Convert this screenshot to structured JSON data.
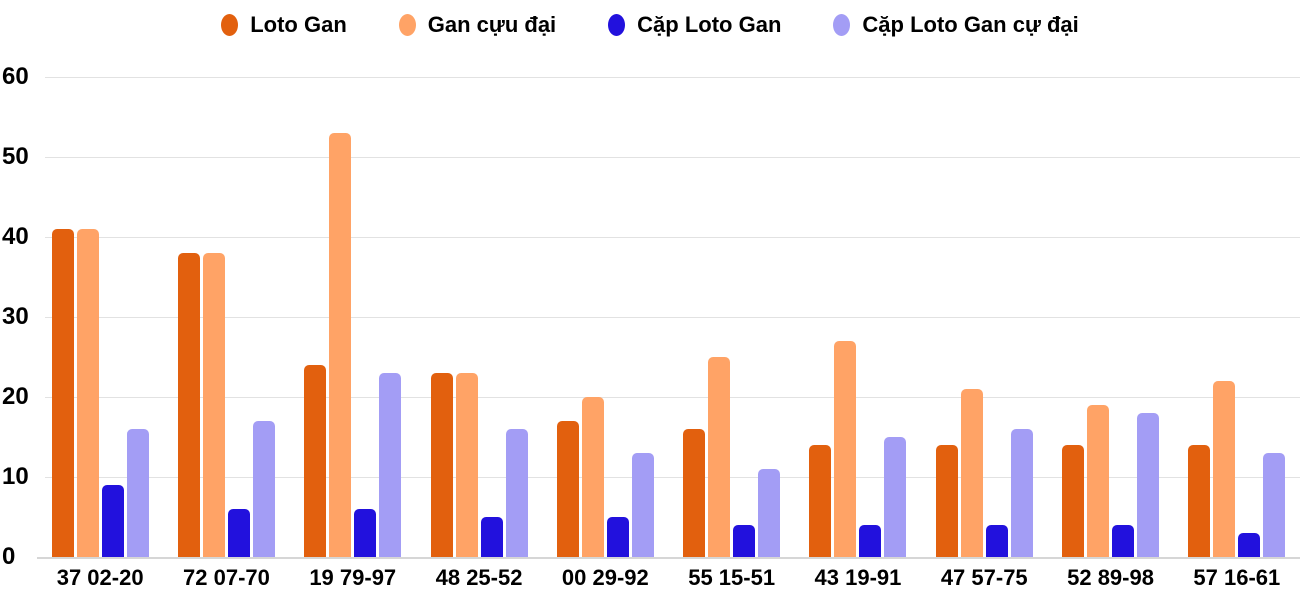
{
  "chart_data": {
    "type": "bar",
    "title": "",
    "categories": [
      "37 02-20",
      "72 07-70",
      "19 79-97",
      "48 25-52",
      "00 29-92",
      "55 15-51",
      "43 19-91",
      "47 57-75",
      "52 89-98",
      "57 16-61"
    ],
    "series": [
      {
        "name": "Loto Gan",
        "color": "#E2600E",
        "values": [
          41,
          38,
          24,
          23,
          17,
          16,
          14,
          14,
          14,
          14
        ]
      },
      {
        "name": "Gan cựu đại",
        "color": "#FFA366",
        "values": [
          41,
          38,
          53,
          23,
          20,
          25,
          27,
          21,
          19,
          22
        ]
      },
      {
        "name": "Cặp Loto Gan",
        "color": "#2211DD",
        "values": [
          9,
          6,
          6,
          5,
          5,
          4,
          4,
          4,
          4,
          3
        ]
      },
      {
        "name": "Cặp Loto Gan cự đại",
        "color": "#A39DF5",
        "values": [
          16,
          17,
          23,
          16,
          13,
          11,
          15,
          16,
          18,
          13
        ]
      }
    ],
    "ylabel": "",
    "xlabel": "",
    "ylim": [
      0,
      60
    ],
    "yticks": [
      0,
      10,
      20,
      30,
      40,
      50,
      60
    ],
    "grid": true,
    "legend_position": "top"
  },
  "colors": {
    "background": "#FFFFFF",
    "gridline": "#E2E2E2",
    "baseline": "#D6D6D6",
    "text": "#000000"
  }
}
